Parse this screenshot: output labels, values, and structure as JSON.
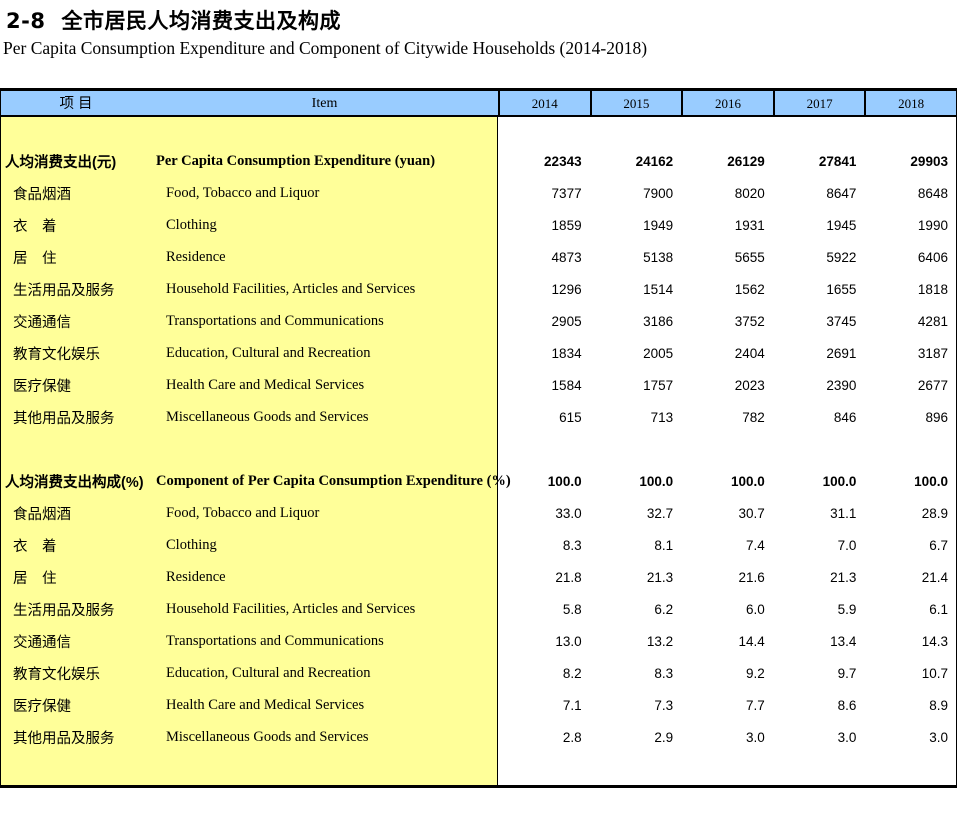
{
  "page": {
    "title_index": "2-8",
    "title_cn": "全市居民人均消费支出及构成",
    "title_en": "Per Capita Consumption Expenditure and Component of Citywide Households (2014-2018)"
  },
  "colors": {
    "header_bg": "#99CCFF",
    "item_panel_bg": "#FFFF99",
    "border": "#000000"
  },
  "table": {
    "header": {
      "item_cn": "项  目",
      "item_en": "Item",
      "years": [
        "2014",
        "2015",
        "2016",
        "2017",
        "2018"
      ]
    },
    "sections": [
      {
        "name": "expenditure",
        "rows": [
          {
            "cn": "人均消费支出(元)",
            "en": "Per Capita Consumption Expenditure (yuan)",
            "values": [
              "22343",
              "24162",
              "26129",
              "27841",
              "29903"
            ],
            "bold": true
          },
          {
            "cn": "食品烟酒",
            "en": "Food, Tobacco and Liquor",
            "values": [
              "7377",
              "7900",
              "8020",
              "8647",
              "8648"
            ],
            "bold": false
          },
          {
            "cn": "衣　着",
            "en": "Clothing",
            "values": [
              "1859",
              "1949",
              "1931",
              "1945",
              "1990"
            ],
            "bold": false
          },
          {
            "cn": "居　住",
            "en": "Residence",
            "values": [
              "4873",
              "5138",
              "5655",
              "5922",
              "6406"
            ],
            "bold": false
          },
          {
            "cn": "生活用品及服务",
            "en": "Household Facilities, Articles and Services",
            "values": [
              "1296",
              "1514",
              "1562",
              "1655",
              "1818"
            ],
            "bold": false
          },
          {
            "cn": "交通通信",
            "en": "Transportations and Communications",
            "values": [
              "2905",
              "3186",
              "3752",
              "3745",
              "4281"
            ],
            "bold": false
          },
          {
            "cn": "教育文化娱乐",
            "en": "Education, Cultural and Recreation",
            "values": [
              "1834",
              "2005",
              "2404",
              "2691",
              "3187"
            ],
            "bold": false
          },
          {
            "cn": "医疗保健",
            "en": "Health Care and Medical Services",
            "values": [
              "1584",
              "1757",
              "2023",
              "2390",
              "2677"
            ],
            "bold": false
          },
          {
            "cn": "其他用品及服务",
            "en": "Miscellaneous Goods and Services",
            "values": [
              "615",
              "713",
              "782",
              "846",
              "896"
            ],
            "bold": false
          }
        ]
      },
      {
        "name": "component",
        "rows": [
          {
            "cn": "人均消费支出构成(%)",
            "en": "Component of Per Capita Consumption Expenditure (%)",
            "values": [
              "100.0",
              "100.0",
              "100.0",
              "100.0",
              "100.0"
            ],
            "bold": true
          },
          {
            "cn": "食品烟酒",
            "en": "Food, Tobacco and Liquor",
            "values": [
              "33.0",
              "32.7",
              "30.7",
              "31.1",
              "28.9"
            ],
            "bold": false
          },
          {
            "cn": "衣　着",
            "en": "Clothing",
            "values": [
              "8.3",
              "8.1",
              "7.4",
              "7.0",
              "6.7"
            ],
            "bold": false
          },
          {
            "cn": "居　住",
            "en": "Residence",
            "values": [
              "21.8",
              "21.3",
              "21.6",
              "21.3",
              "21.4"
            ],
            "bold": false
          },
          {
            "cn": "生活用品及服务",
            "en": "Household Facilities, Articles and Services",
            "values": [
              "5.8",
              "6.2",
              "6.0",
              "5.9",
              "6.1"
            ],
            "bold": false
          },
          {
            "cn": "交通通信",
            "en": "Transportations and Communications",
            "values": [
              "13.0",
              "13.2",
              "14.4",
              "13.4",
              "14.3"
            ],
            "bold": false
          },
          {
            "cn": "教育文化娱乐",
            "en": "Education, Cultural and Recreation",
            "values": [
              "8.2",
              "8.3",
              "9.2",
              "9.7",
              "10.7"
            ],
            "bold": false
          },
          {
            "cn": "医疗保健",
            "en": "Health Care and Medical Services",
            "values": [
              "7.1",
              "7.3",
              "7.7",
              "8.6",
              "8.9"
            ],
            "bold": false
          },
          {
            "cn": "其他用品及服务",
            "en": "Miscellaneous Goods and Services",
            "values": [
              "2.8",
              "2.9",
              "3.0",
              "3.0",
              "3.0"
            ],
            "bold": false
          }
        ]
      }
    ]
  }
}
